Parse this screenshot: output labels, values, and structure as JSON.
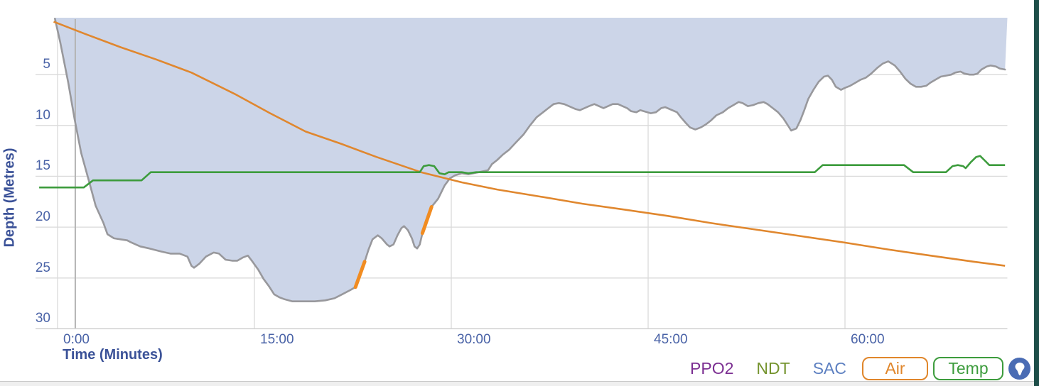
{
  "app": {
    "view_name": "dive-profile"
  },
  "colors": {
    "depth_fill": "#ccd5e8",
    "depth_line": "#98989c",
    "air_line": "#e0872e",
    "temp_line": "#3d9c3d",
    "warning_segment": "#f18c21",
    "gridline": "#dadada",
    "axis_line": "#c6c6c6",
    "marker_line": "#b4b4b4",
    "tick_label": "#4a63a7",
    "axis_title": "#3b5298",
    "legend_ppo2": "#7c2f92",
    "legend_ndt": "#74932d",
    "legend_sac": "#5d80c1",
    "logo_button_bg": "#4a6cb4",
    "right_edge_bar": "#1d4e49"
  },
  "legend": {
    "ppo2": "PPO2",
    "ndt": "NDT",
    "sac": "SAC",
    "air": "Air",
    "temp": "Temp",
    "logo_icon": "bell-shield-icon"
  },
  "chart_data": {
    "type": "area",
    "title": "",
    "xlabel": "Time (Minutes)",
    "ylabel": "Depth (Metres)",
    "x_unit": "minutes",
    "y_unit": "metres (depth axis inverted, 0 at top)",
    "xlim": [
      -0.6,
      72.3
    ],
    "ylim_depth": [
      -0.6,
      30
    ],
    "grid": true,
    "x_ticks": [
      {
        "label": "0:00",
        "value": 0
      },
      {
        "label": "15:00",
        "value": 15
      },
      {
        "label": "30:00",
        "value": 30
      },
      {
        "label": "45:00",
        "value": 45
      },
      {
        "label": "60:00",
        "value": 60
      }
    ],
    "y_ticks": [
      {
        "label": "5",
        "value": 5
      },
      {
        "label": "10",
        "value": 10
      },
      {
        "label": "15",
        "value": 15
      },
      {
        "label": "20",
        "value": 20
      },
      {
        "label": "25",
        "value": 25
      },
      {
        "label": "30",
        "value": 30
      }
    ],
    "marker_time_min": 1.35,
    "note": "Air and Temp curves have no numeric axis on screen; their values are recorded in depth-axis display units.",
    "series": [
      {
        "name": "depth-profile",
        "type": "area",
        "points": [
          [
            -0.2,
            -0.5
          ],
          [
            0.2,
            1.8
          ],
          [
            0.8,
            5.7
          ],
          [
            1.3,
            9.4
          ],
          [
            1.8,
            12.7
          ],
          [
            2.4,
            15.5
          ],
          [
            2.9,
            17.9
          ],
          [
            3.5,
            19.6
          ],
          [
            3.8,
            20.7
          ],
          [
            4.3,
            21.1
          ],
          [
            4.8,
            21.2
          ],
          [
            5.3,
            21.3
          ],
          [
            5.6,
            21.5
          ],
          [
            6.3,
            21.9
          ],
          [
            7,
            22.1
          ],
          [
            7.9,
            22.4
          ],
          [
            8.6,
            22.6
          ],
          [
            9.3,
            22.6
          ],
          [
            9.9,
            22.9
          ],
          [
            10.2,
            23.8
          ],
          [
            10.4,
            24
          ],
          [
            10.8,
            23.6
          ],
          [
            11.3,
            22.9
          ],
          [
            11.9,
            22.5
          ],
          [
            12.3,
            22.6
          ],
          [
            12.8,
            23.2
          ],
          [
            13.3,
            23.3
          ],
          [
            13.7,
            23.3
          ],
          [
            14.1,
            23
          ],
          [
            14.5,
            22.8
          ],
          [
            14.8,
            23.3
          ],
          [
            15.3,
            24.2
          ],
          [
            15.7,
            25.1
          ],
          [
            16.1,
            25.8
          ],
          [
            16.5,
            26.6
          ],
          [
            16.9,
            26.9
          ],
          [
            17.3,
            27.1
          ],
          [
            17.9,
            27.3
          ],
          [
            18.8,
            27.3
          ],
          [
            19.6,
            27.3
          ],
          [
            20.4,
            27.2
          ],
          [
            21.1,
            27
          ],
          [
            21.7,
            26.6
          ],
          [
            22.3,
            26.2
          ],
          [
            22.7,
            25.9
          ],
          [
            23.4,
            23.4
          ],
          [
            23.7,
            22.2
          ],
          [
            24,
            21.2
          ],
          [
            24.4,
            20.8
          ],
          [
            24.7,
            21.1
          ],
          [
            25.1,
            21.7
          ],
          [
            25.3,
            21.9
          ],
          [
            25.6,
            21.7
          ],
          [
            25.9,
            20.8
          ],
          [
            26.2,
            20.1
          ],
          [
            26.4,
            19.9
          ],
          [
            26.7,
            20.3
          ],
          [
            27,
            21.1
          ],
          [
            27.2,
            21.9
          ],
          [
            27.4,
            22.1
          ],
          [
            27.6,
            21.7
          ],
          [
            27.8,
            20.6
          ],
          [
            28.2,
            19.3
          ],
          [
            28.5,
            18
          ],
          [
            29,
            17.2
          ],
          [
            29.5,
            15.9
          ],
          [
            29.9,
            15.2
          ],
          [
            30.3,
            14.9
          ],
          [
            30.8,
            14.7
          ],
          [
            31.3,
            14.8
          ],
          [
            32.1,
            14.6
          ],
          [
            32.8,
            14.4
          ],
          [
            33.1,
            13.8
          ],
          [
            33.5,
            13.4
          ],
          [
            33.9,
            12.9
          ],
          [
            34.4,
            12.4
          ],
          [
            34.9,
            11.7
          ],
          [
            35.5,
            10.9
          ],
          [
            36,
            10
          ],
          [
            36.5,
            9.2
          ],
          [
            37,
            8.7
          ],
          [
            37.4,
            8.3
          ],
          [
            37.8,
            7.9
          ],
          [
            38.2,
            7.8
          ],
          [
            38.6,
            7.9
          ],
          [
            39.5,
            8.4
          ],
          [
            39.8,
            8.5
          ],
          [
            40.5,
            8.1
          ],
          [
            40.9,
            7.9
          ],
          [
            41.6,
            8.3
          ],
          [
            42.3,
            7.9
          ],
          [
            42.7,
            7.9
          ],
          [
            43.4,
            8.3
          ],
          [
            43.7,
            8.6
          ],
          [
            44.1,
            8.7
          ],
          [
            44.4,
            8.5
          ],
          [
            45.2,
            8.8
          ],
          [
            45.6,
            8.7
          ],
          [
            46,
            8.3
          ],
          [
            46.3,
            8.2
          ],
          [
            47.2,
            8.7
          ],
          [
            47.5,
            9.2
          ],
          [
            47.9,
            9.8
          ],
          [
            48.2,
            10.2
          ],
          [
            48.6,
            10.4
          ],
          [
            49,
            10.2
          ],
          [
            49.4,
            9.9
          ],
          [
            49.8,
            9.5
          ],
          [
            50.2,
            9
          ],
          [
            50.7,
            8.7
          ],
          [
            51.1,
            8.3
          ],
          [
            51.5,
            8
          ],
          [
            51.9,
            7.7
          ],
          [
            52.2,
            7.8
          ],
          [
            52.6,
            8.1
          ],
          [
            53,
            8
          ],
          [
            53.4,
            7.8
          ],
          [
            53.8,
            7.7
          ],
          [
            54.1,
            7.9
          ],
          [
            54.5,
            8.3
          ],
          [
            54.9,
            8.7
          ],
          [
            55.3,
            9.3
          ],
          [
            55.7,
            10.1
          ],
          [
            55.9,
            10.5
          ],
          [
            56.3,
            10.3
          ],
          [
            56.6,
            9.5
          ],
          [
            56.9,
            8.5
          ],
          [
            57.2,
            7.4
          ],
          [
            57.6,
            6.5
          ],
          [
            58,
            5.7
          ],
          [
            58.4,
            5.2
          ],
          [
            58.7,
            5.1
          ],
          [
            59,
            5.5
          ],
          [
            59.3,
            6.2
          ],
          [
            59.7,
            6.5
          ],
          [
            60,
            6.3
          ],
          [
            60.4,
            6.1
          ],
          [
            60.8,
            5.8
          ],
          [
            61.2,
            5.5
          ],
          [
            61.6,
            5.3
          ],
          [
            62,
            4.9
          ],
          [
            62.5,
            4.3
          ],
          [
            62.9,
            3.9
          ],
          [
            63.3,
            3.7
          ],
          [
            63.8,
            4.1
          ],
          [
            64.2,
            4.7
          ],
          [
            64.6,
            5.4
          ],
          [
            65,
            5.9
          ],
          [
            65.4,
            6.2
          ],
          [
            65.8,
            6.2
          ],
          [
            66.2,
            6.1
          ],
          [
            66.5,
            5.8
          ],
          [
            66.9,
            5.5
          ],
          [
            67.3,
            5.2
          ],
          [
            67.7,
            5.1
          ],
          [
            68.1,
            5
          ],
          [
            68.4,
            4.8
          ],
          [
            68.8,
            4.7
          ],
          [
            69.1,
            4.9
          ],
          [
            69.5,
            5
          ],
          [
            69.8,
            5
          ],
          [
            70.1,
            4.9
          ],
          [
            70.4,
            4.5
          ],
          [
            70.8,
            4.2
          ],
          [
            71.1,
            4.1
          ],
          [
            71.5,
            4.2
          ],
          [
            71.8,
            4.4
          ],
          [
            72.2,
            4.5
          ]
        ]
      },
      {
        "name": "air-pressure",
        "type": "line",
        "points": [
          [
            -0.3,
            -0.2
          ],
          [
            2.1,
            1
          ],
          [
            4.8,
            2.3
          ],
          [
            7.5,
            3.5
          ],
          [
            10.2,
            4.8
          ],
          [
            13.5,
            6.9
          ],
          [
            16.2,
            8.8
          ],
          [
            18.9,
            10.6
          ],
          [
            21.6,
            11.8
          ],
          [
            24.3,
            13.1
          ],
          [
            27.7,
            14.6
          ],
          [
            30.8,
            15.6
          ],
          [
            33.5,
            16.3
          ],
          [
            36.8,
            17
          ],
          [
            40,
            17.7
          ],
          [
            43.3,
            18.3
          ],
          [
            46.5,
            18.9
          ],
          [
            49.8,
            19.6
          ],
          [
            53,
            20.2
          ],
          [
            56.2,
            20.8
          ],
          [
            59.9,
            21.5
          ],
          [
            63.3,
            22.2
          ],
          [
            66.5,
            22.8
          ],
          [
            69.8,
            23.4
          ],
          [
            72.2,
            23.8
          ]
        ]
      },
      {
        "name": "temperature",
        "type": "line",
        "points": [
          [
            -1.4,
            16.1
          ],
          [
            2,
            16.1
          ],
          [
            2.7,
            15.4
          ],
          [
            6.4,
            15.4
          ],
          [
            7.1,
            14.6
          ],
          [
            26.2,
            14.6
          ],
          [
            27.6,
            14.6
          ],
          [
            27.9,
            14
          ],
          [
            28.3,
            13.9
          ],
          [
            28.7,
            14
          ],
          [
            29.1,
            14.7
          ],
          [
            29.5,
            14.8
          ],
          [
            29.8,
            14.6
          ],
          [
            30.8,
            14.6
          ],
          [
            31.3,
            14.7
          ],
          [
            31.9,
            14.6
          ],
          [
            57.7,
            14.6
          ],
          [
            58.3,
            13.9
          ],
          [
            64.5,
            13.9
          ],
          [
            65.2,
            14.6
          ],
          [
            67.7,
            14.6
          ],
          [
            68.2,
            14
          ],
          [
            68.6,
            13.9
          ],
          [
            69,
            14
          ],
          [
            69.2,
            14.2
          ],
          [
            69.6,
            13.6
          ],
          [
            70,
            13.1
          ],
          [
            70.3,
            13
          ],
          [
            70.7,
            13.5
          ],
          [
            71,
            13.9
          ],
          [
            71.6,
            13.9
          ],
          [
            72.2,
            13.9
          ]
        ]
      },
      {
        "name": "rate-warning-segments",
        "type": "segments",
        "segments": [
          [
            [
              22.7,
              25.9
            ],
            [
              23.4,
              23.4
            ]
          ],
          [
            [
              27.8,
              20.6
            ],
            [
              28.5,
              18
            ]
          ]
        ]
      }
    ]
  }
}
